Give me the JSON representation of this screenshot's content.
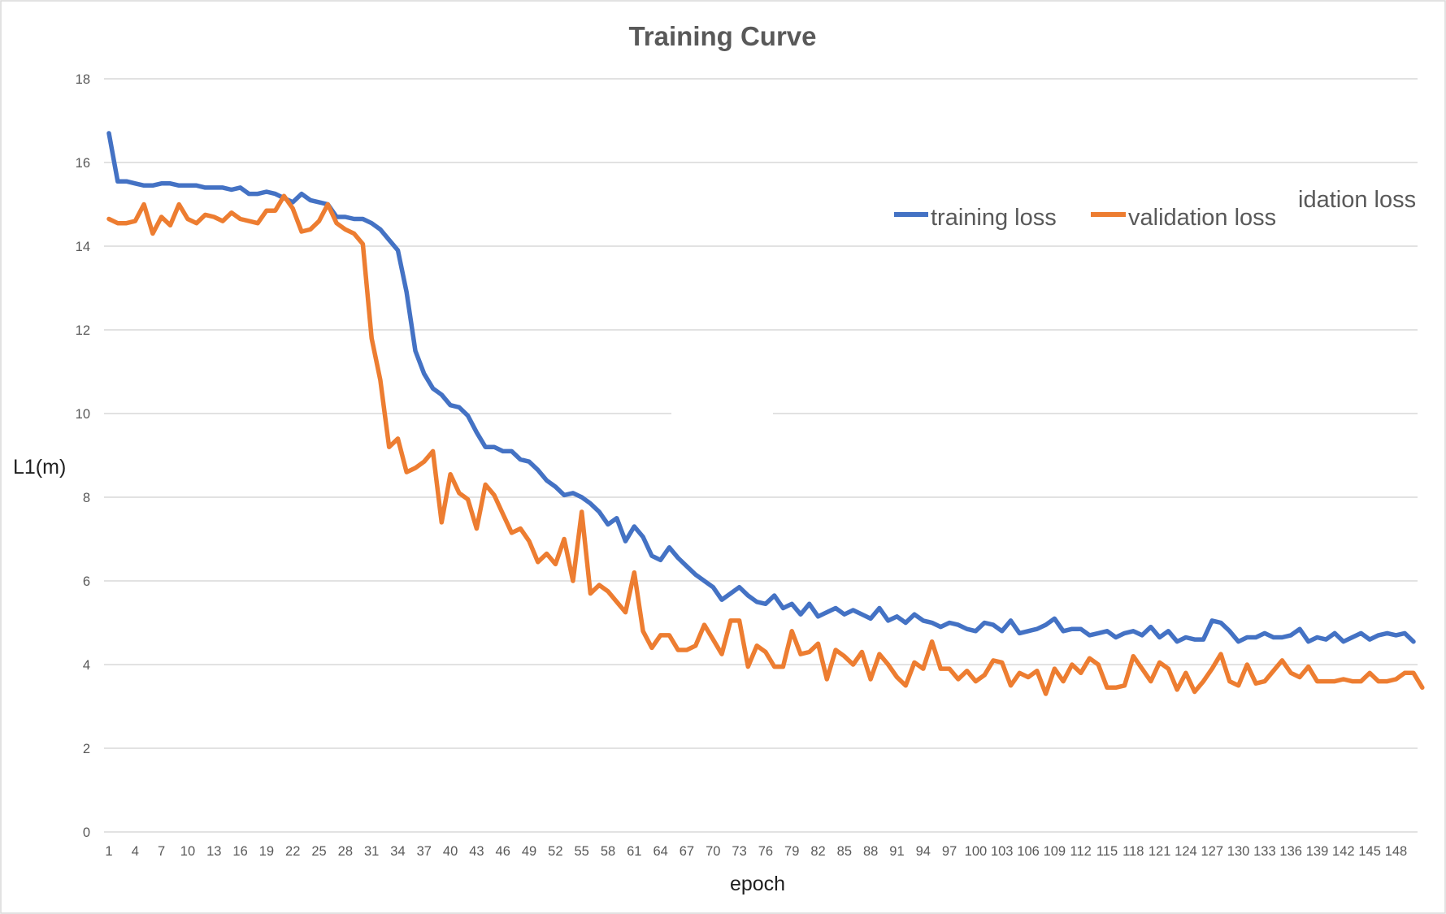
{
  "colors": {
    "training": "#4472C4",
    "validation": "#ED7D31",
    "grid": "#D9D9D9",
    "text": "#595959"
  },
  "chart_data": {
    "type": "line",
    "title": "Training Curve",
    "xlabel": "epoch",
    "ylabel": "L1(m)",
    "ylim": [
      0,
      18
    ],
    "yticks": [
      0,
      2,
      4,
      6,
      8,
      10,
      12,
      14,
      16,
      18
    ],
    "xlim": [
      1,
      150
    ],
    "xticks": [
      1,
      4,
      7,
      10,
      13,
      16,
      19,
      22,
      25,
      28,
      31,
      34,
      37,
      40,
      43,
      46,
      49,
      52,
      55,
      58,
      61,
      64,
      67,
      70,
      73,
      76,
      79,
      82,
      85,
      88,
      91,
      94,
      97,
      100,
      103,
      106,
      109,
      112,
      115,
      118,
      121,
      124,
      127,
      130,
      133,
      136,
      139,
      142,
      145,
      148
    ],
    "grid": true,
    "legend_position": "top-right",
    "legend_stray_label": "idation loss",
    "series": [
      {
        "name": "training loss",
        "color": "#4472C4",
        "values": [
          16.7,
          15.55,
          15.55,
          15.5,
          15.45,
          15.45,
          15.5,
          15.5,
          15.45,
          15.45,
          15.45,
          15.4,
          15.4,
          15.4,
          15.35,
          15.4,
          15.25,
          15.25,
          15.3,
          15.25,
          15.15,
          15.05,
          15.25,
          15.1,
          15.05,
          15.0,
          14.7,
          14.7,
          14.65,
          14.65,
          14.55,
          14.4,
          14.15,
          13.9,
          12.9,
          11.5,
          10.95,
          10.6,
          10.45,
          10.2,
          10.15,
          9.95,
          9.55,
          9.2,
          9.2,
          9.1,
          9.1,
          8.9,
          8.85,
          8.65,
          8.4,
          8.25,
          8.05,
          8.1,
          8.0,
          7.85,
          7.65,
          7.35,
          7.5,
          6.95,
          7.3,
          7.05,
          6.6,
          6.5,
          6.8,
          6.55,
          6.35,
          6.15,
          6.0,
          5.85,
          5.55,
          5.7,
          5.85,
          5.65,
          5.5,
          5.45,
          5.65,
          5.35,
          5.45,
          5.2,
          5.45,
          5.15,
          5.25,
          5.35,
          5.2,
          5.3,
          5.2,
          5.1,
          5.35,
          5.05,
          5.15,
          5.0,
          5.2,
          5.05,
          5.0,
          4.9,
          5.0,
          4.95,
          4.85,
          4.8,
          5.0,
          4.95,
          4.8,
          5.05,
          4.75,
          4.8,
          4.85,
          4.95,
          5.1,
          4.8,
          4.85,
          4.85,
          4.7,
          4.75,
          4.8,
          4.65,
          4.75,
          4.8,
          4.7,
          4.9,
          4.65,
          4.8,
          4.55,
          4.65,
          4.6,
          4.6,
          5.05,
          5.0,
          4.8,
          4.55,
          4.65,
          4.65,
          4.75,
          4.65,
          4.65,
          4.7,
          4.85,
          4.55,
          4.65,
          4.6,
          4.75,
          4.55,
          4.65,
          4.75,
          4.6,
          4.7,
          4.75,
          4.7,
          4.75,
          4.55
        ]
      },
      {
        "name": "validation loss",
        "color": "#ED7D31",
        "values": [
          14.65,
          14.55,
          14.55,
          14.6,
          15.0,
          14.3,
          14.7,
          14.5,
          15.0,
          14.65,
          14.55,
          14.75,
          14.7,
          14.6,
          14.8,
          14.65,
          14.6,
          14.55,
          14.85,
          14.85,
          15.2,
          14.9,
          14.35,
          14.4,
          14.6,
          15.0,
          14.55,
          14.4,
          14.3,
          14.05,
          11.8,
          10.8,
          9.2,
          9.4,
          8.6,
          8.7,
          8.85,
          9.1,
          7.4,
          8.55,
          8.1,
          7.95,
          7.25,
          8.3,
          8.05,
          7.6,
          7.15,
          7.25,
          6.95,
          6.45,
          6.65,
          6.4,
          7.0,
          6.0,
          7.65,
          5.7,
          5.9,
          5.75,
          5.5,
          5.25,
          6.2,
          4.8,
          4.4,
          4.7,
          4.7,
          4.35,
          4.35,
          4.45,
          4.95,
          4.6,
          4.25,
          5.05,
          5.05,
          3.95,
          4.45,
          4.3,
          3.95,
          3.95,
          4.8,
          4.25,
          4.3,
          4.5,
          3.65,
          4.35,
          4.2,
          4.0,
          4.3,
          3.65,
          4.25,
          4.0,
          3.7,
          3.5,
          4.05,
          3.9,
          4.55,
          3.9,
          3.9,
          3.65,
          3.85,
          3.6,
          3.75,
          4.1,
          4.05,
          3.5,
          3.8,
          3.7,
          3.85,
          3.3,
          3.9,
          3.6,
          4.0,
          3.8,
          4.15,
          4.0,
          3.45,
          3.45,
          3.5,
          4.2,
          3.9,
          3.6,
          4.05,
          3.9,
          3.4,
          3.8,
          3.35,
          3.6,
          3.9,
          4.25,
          3.6,
          3.5,
          4.0,
          3.55,
          3.6,
          3.85,
          4.1,
          3.8,
          3.7,
          3.95,
          3.6,
          3.6,
          3.6,
          3.65,
          3.6,
          3.6,
          3.8,
          3.6,
          3.6,
          3.65,
          3.8,
          3.8,
          3.45
        ]
      }
    ]
  }
}
